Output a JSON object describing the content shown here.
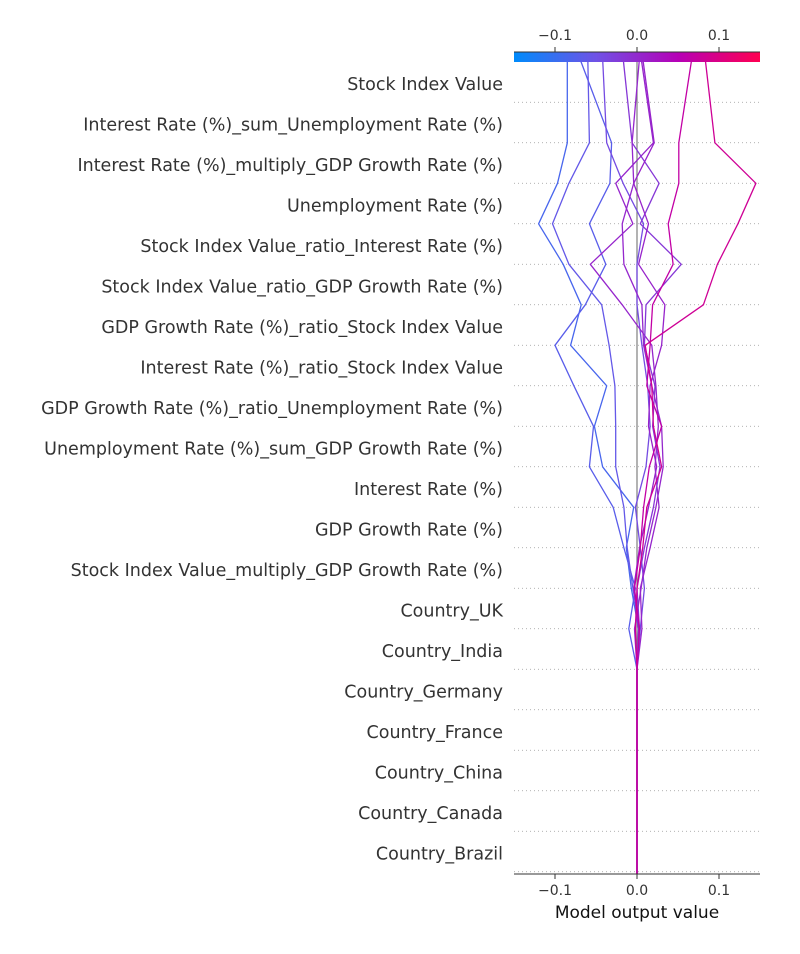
{
  "chart_data": {
    "type": "line",
    "subtype": "shap-decision-plot",
    "xlabel": "Model output value",
    "xlim": [
      -0.15,
      0.15
    ],
    "xticks": [
      {
        "value": -0.1,
        "label": "−0.1"
      },
      {
        "value": 0.0,
        "label": "0.0"
      },
      {
        "value": 0.1,
        "label": "0.1"
      }
    ],
    "base_value": 0.0,
    "colorbar": {
      "position": "top",
      "range": [
        -0.15,
        0.15
      ],
      "colors": [
        "#008bfb",
        "#6f52e6",
        "#b600b6",
        "#ff0051"
      ]
    },
    "features": [
      "Stock Index Value",
      "Interest Rate (%)_sum_Unemployment Rate (%)",
      "Interest Rate (%)_multiply_GDP Growth Rate (%)",
      "Unemployment Rate (%)",
      "Stock Index Value_ratio_Interest Rate (%)",
      "Stock Index Value_ratio_GDP Growth Rate (%)",
      "GDP Growth Rate (%)_ratio_Stock Index Value",
      "Interest Rate (%)_ratio_Stock Index Value",
      "GDP Growth Rate (%)_ratio_Unemployment Rate (%)",
      "Unemployment Rate (%)_sum_GDP Growth Rate (%)",
      "Interest Rate (%)",
      "GDP Growth Rate (%)",
      "Stock Index Value_multiply_GDP Growth Rate (%)",
      "Country_UK",
      "Country_India",
      "Country_Germany",
      "Country_France",
      "Country_China",
      "Country_Canada",
      "Country_Brazil"
    ],
    "series": [
      {
        "values": [
          0,
          0,
          0,
          0,
          0,
          0,
          0,
          0.002,
          -0.007,
          -0.013,
          -0.004,
          -0.042,
          -0.052,
          -0.037,
          -0.081,
          -0.068,
          -0.09,
          -0.12,
          -0.097,
          -0.085,
          -0.085
        ]
      },
      {
        "values": [
          0,
          0,
          0,
          0,
          0,
          0,
          0,
          -0.01,
          -0.002,
          -0.016,
          -0.029,
          -0.058,
          -0.053,
          -0.077,
          -0.1,
          -0.063,
          -0.038,
          -0.058,
          -0.033,
          -0.031,
          -0.07
        ]
      },
      {
        "values": [
          0,
          0,
          0,
          0,
          0,
          0,
          0,
          0.003,
          -0.005,
          -0.012,
          -0.016,
          -0.026,
          -0.026,
          -0.027,
          -0.034,
          -0.043,
          -0.083,
          -0.103,
          -0.083,
          -0.058,
          -0.06
        ]
      },
      {
        "values": [
          0,
          0,
          0,
          0,
          0,
          0,
          0,
          0.004,
          0.009,
          0.004,
          -0.002,
          0.011,
          0.016,
          0.013,
          0.006,
          0.0,
          0.0,
          0.008,
          -0.017,
          -0.037,
          -0.042
        ]
      },
      {
        "values": [
          0,
          0,
          0,
          0,
          0,
          0,
          0,
          0.006,
          0.004,
          0.016,
          0.027,
          0.022,
          0.026,
          0.023,
          0.018,
          -0.018,
          -0.057,
          -0.005,
          -0.026,
          0.02,
          0.005
        ]
      },
      {
        "values": [
          0,
          0,
          0,
          0,
          0,
          0,
          0,
          0.003,
          0.0,
          0.009,
          0.02,
          0.028,
          0.019,
          0.022,
          0.009,
          0.011,
          0.054,
          0.004,
          0.027,
          -0.006,
          -0.017
        ]
      },
      {
        "values": [
          0,
          0,
          0,
          0,
          0,
          0,
          0,
          -0.003,
          0.005,
          0.012,
          0.023,
          0.032,
          0.03,
          0.018,
          0.008,
          0.006,
          -0.016,
          -0.018,
          -0.004,
          -0.006,
          0.003
        ]
      },
      {
        "values": [
          0,
          0,
          0,
          0,
          0,
          0,
          0,
          0.002,
          -0.004,
          0.003,
          0.014,
          0.024,
          0.014,
          0.016,
          0.03,
          0.034,
          0.002,
          0.014,
          -0.004,
          0.021,
          0.007
        ]
      },
      {
        "values": [
          0,
          0,
          0,
          0,
          0,
          0,
          0,
          0.003,
          -0.003,
          0.004,
          0.008,
          0.015,
          0.03,
          0.012,
          0.016,
          0.019,
          0.044,
          0.038,
          0.051,
          0.051,
          0.067
        ]
      },
      {
        "values": [
          0,
          0,
          0,
          0,
          0,
          0,
          0,
          -0.002,
          0.0,
          0.007,
          0.012,
          0.03,
          0.02,
          0.018,
          0.01,
          0.081,
          0.098,
          0.123,
          0.145,
          0.095,
          0.083
        ]
      }
    ]
  }
}
